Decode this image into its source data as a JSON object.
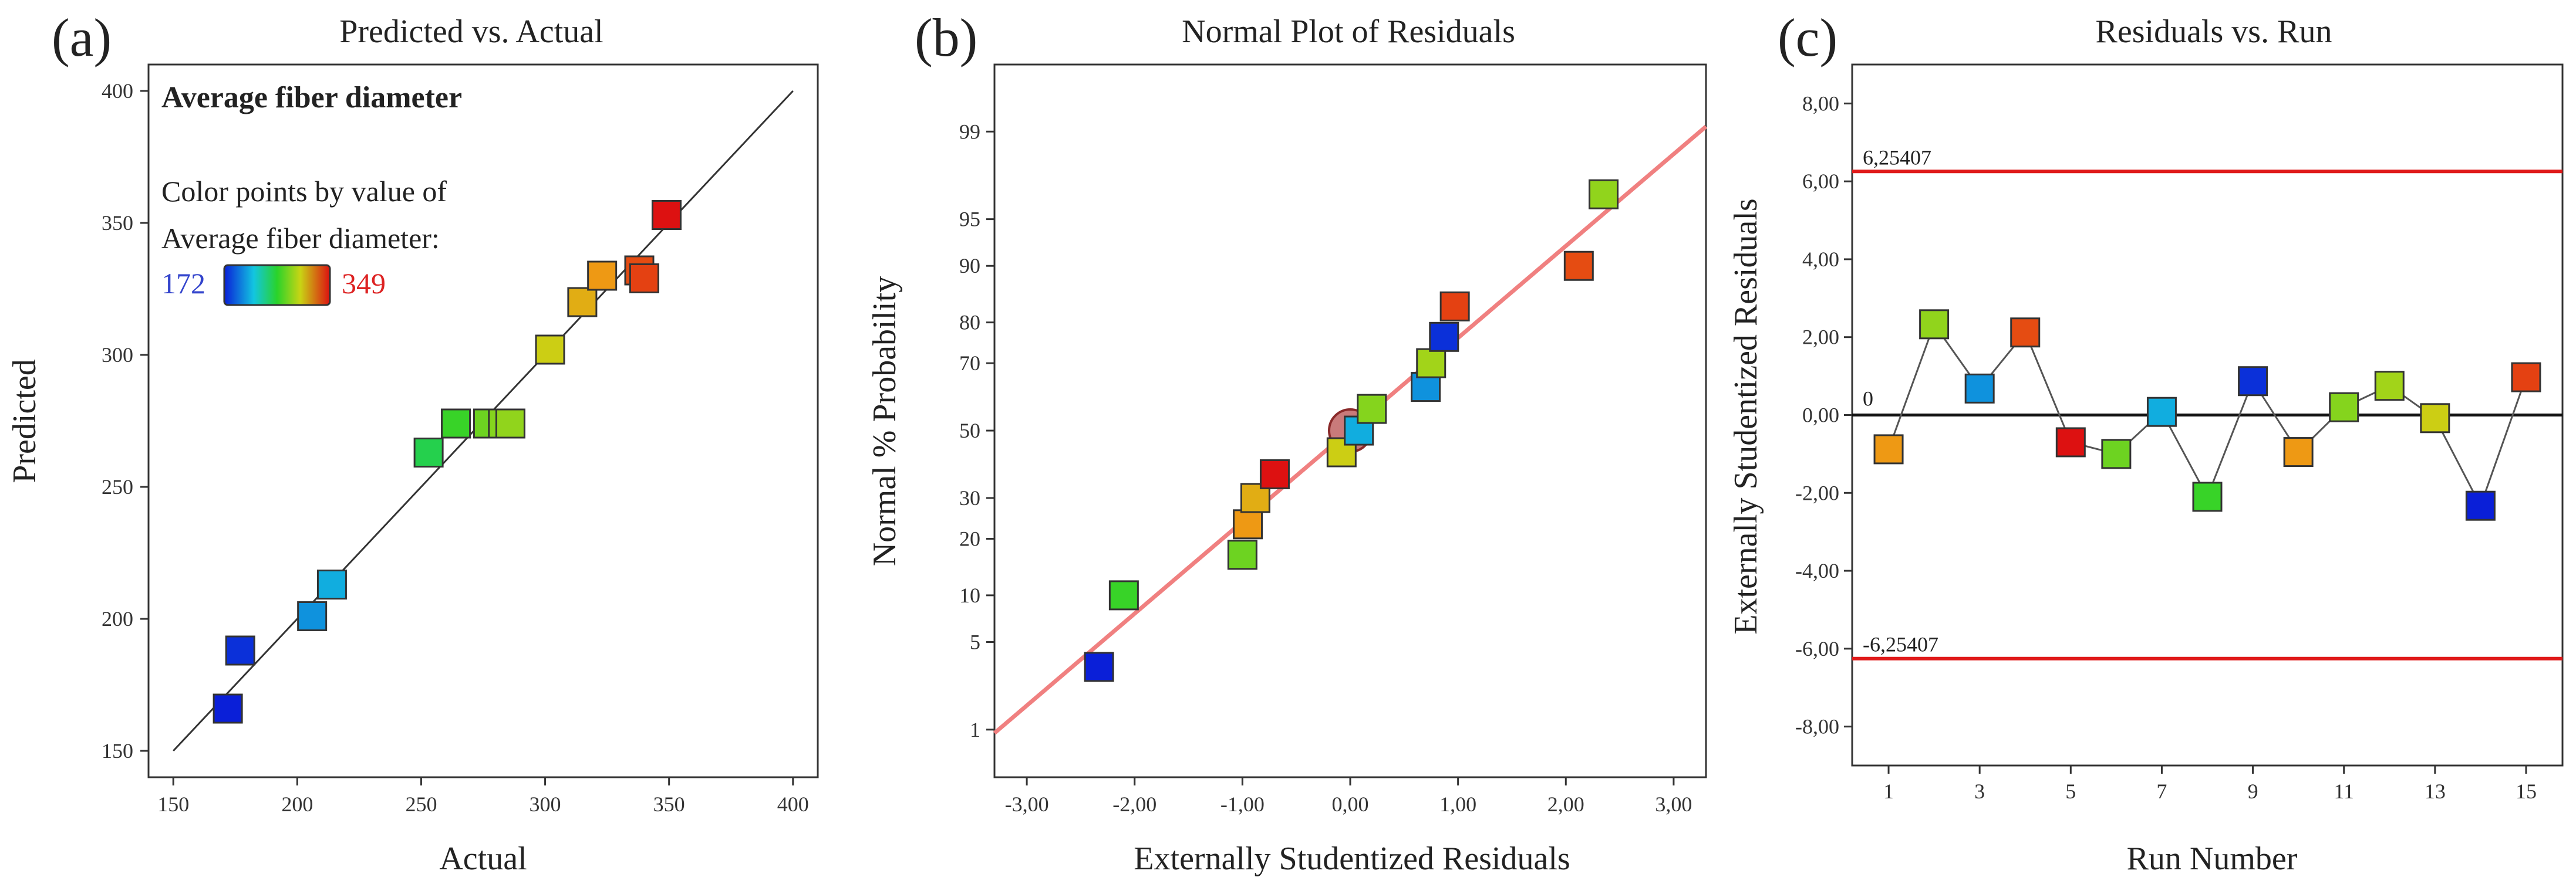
{
  "figure": {
    "marker_size": 8
  },
  "colors": {
    "low": "#0a1fd8",
    "high": "#dd1111",
    "fit_line_a": "#333333",
    "fit_line_b": "#f08080",
    "limit_line": "#e01a1a",
    "zero_line": "#111111",
    "run_line": "#555555",
    "marker_edge": "#333333"
  },
  "chart_data": [
    {
      "id": "a",
      "panel_label": "(a)",
      "type": "scatter",
      "title": "Predicted vs. Actual",
      "xlabel": "Actual",
      "ylabel": "Predicted",
      "xlim": [
        140,
        410
      ],
      "ylim": [
        140,
        410
      ],
      "xticks": [
        150,
        200,
        250,
        300,
        350,
        400
      ],
      "yticks": [
        150,
        200,
        250,
        300,
        350,
        400
      ],
      "xtick_labels": [
        "150",
        "200",
        "250",
        "300",
        "350",
        "400"
      ],
      "ytick_labels": [
        "150",
        "200",
        "250",
        "300",
        "350",
        "400"
      ],
      "reference_line": [
        [
          150,
          150
        ],
        [
          400,
          400
        ]
      ],
      "annotation": {
        "heading": "Average fiber diameter",
        "legend_line1": "Color points by value of",
        "legend_line2": "Average fiber diameter:",
        "scale_min": "172",
        "scale_max": "349",
        "scale_min_value": 172,
        "scale_max_value": 349
      },
      "points": [
        {
          "actual": 172,
          "predicted": 166
        },
        {
          "actual": 177,
          "predicted": 188
        },
        {
          "actual": 206,
          "predicted": 201
        },
        {
          "actual": 214,
          "predicted": 213
        },
        {
          "actual": 253,
          "predicted": 263
        },
        {
          "actual": 264,
          "predicted": 274
        },
        {
          "actual": 277,
          "predicted": 274
        },
        {
          "actual": 283,
          "predicted": 274
        },
        {
          "actual": 286,
          "predicted": 274
        },
        {
          "actual": 302,
          "predicted": 302
        },
        {
          "actual": 315,
          "predicted": 320
        },
        {
          "actual": 323,
          "predicted": 330
        },
        {
          "actual": 338,
          "predicted": 332
        },
        {
          "actual": 340,
          "predicted": 329
        },
        {
          "actual": 349,
          "predicted": 353
        }
      ]
    },
    {
      "id": "b",
      "panel_label": "(b)",
      "type": "scatter",
      "title": "Normal Plot of Residuals",
      "xlabel": "Externally Studentized Residuals",
      "ylabel": "Normal % Probability",
      "xlim": [
        -3.3,
        3.3
      ],
      "yscale": "normal-probability",
      "xticks": [
        -3,
        -2,
        -1,
        0,
        1,
        2,
        3
      ],
      "xtick_labels": [
        "-3,00",
        "-2,00",
        "-1,00",
        "0,00",
        "1,00",
        "2,00",
        "3,00"
      ],
      "yticks": [
        1,
        5,
        10,
        20,
        30,
        50,
        70,
        80,
        90,
        95,
        99
      ],
      "ytick_labels": [
        "1",
        "5",
        "10",
        "20",
        "30",
        "50",
        "70",
        "80",
        "90",
        "95",
        "99"
      ],
      "fit_line": [
        [
          -3.3,
          0.93
        ],
        [
          3.3,
          99.1
        ]
      ],
      "points": [
        {
          "residual": -2.33,
          "prob": 3.3,
          "value": 172
        },
        {
          "residual": -2.1,
          "prob": 10,
          "value": 264
        },
        {
          "residual": -1.0,
          "prob": 16.7,
          "value": 277
        },
        {
          "residual": -0.95,
          "prob": 23.3,
          "value": 323
        },
        {
          "residual": -0.88,
          "prob": 30,
          "value": 315
        },
        {
          "residual": -0.7,
          "prob": 36.7,
          "value": 349
        },
        {
          "residual": -0.08,
          "prob": 43.3,
          "value": 302
        },
        {
          "residual": 0.0,
          "prob": 50,
          "value": 330,
          "highlight": true
        },
        {
          "residual": 0.08,
          "prob": 50,
          "value": 214
        },
        {
          "residual": 0.2,
          "prob": 56.7,
          "value": 283
        },
        {
          "residual": 0.7,
          "prob": 63.3,
          "value": 206
        },
        {
          "residual": 0.75,
          "prob": 70,
          "value": 290
        },
        {
          "residual": 0.87,
          "prob": 76.7,
          "value": 177
        },
        {
          "residual": 0.97,
          "prob": 83.3,
          "value": 340
        },
        {
          "residual": 2.12,
          "prob": 90,
          "value": 338
        },
        {
          "residual": 2.35,
          "prob": 96.7,
          "value": 286
        }
      ]
    },
    {
      "id": "c",
      "panel_label": "(c)",
      "type": "line",
      "title": "Residuals vs. Run",
      "xlabel": "Run Number",
      "ylabel": "Externally Studentized Residuals",
      "xlim": [
        0.2,
        15.8
      ],
      "ylim": [
        -9,
        9
      ],
      "xticks": [
        1,
        3,
        5,
        7,
        9,
        11,
        13,
        15
      ],
      "xtick_labels": [
        "1",
        "3",
        "5",
        "7",
        "9",
        "11",
        "13",
        "15"
      ],
      "yticks": [
        -8,
        -6,
        -4,
        -2,
        0,
        2,
        4,
        6,
        8
      ],
      "ytick_labels": [
        "-8,00",
        "-6,00",
        "-4,00",
        "-2,00",
        "0,00",
        "2,00",
        "4,00",
        "6,00",
        "8,00"
      ],
      "upper_limit": 6.25407,
      "lower_limit": -6.25407,
      "upper_limit_label": "6,25407",
      "lower_limit_label": "-6,25407",
      "zero_label": "0",
      "points": [
        {
          "run": 1,
          "residual": -0.88,
          "value": 323
        },
        {
          "run": 2,
          "residual": 2.33,
          "value": 286
        },
        {
          "run": 3,
          "residual": 0.68,
          "value": 206
        },
        {
          "run": 4,
          "residual": 2.12,
          "value": 338
        },
        {
          "run": 5,
          "residual": -0.7,
          "value": 349
        },
        {
          "run": 6,
          "residual": -1.0,
          "value": 277
        },
        {
          "run": 7,
          "residual": 0.08,
          "value": 214
        },
        {
          "run": 8,
          "residual": -2.1,
          "value": 264
        },
        {
          "run": 9,
          "residual": 0.87,
          "value": 177
        },
        {
          "run": 10,
          "residual": -0.95,
          "value": 323
        },
        {
          "run": 11,
          "residual": 0.2,
          "value": 283
        },
        {
          "run": 12,
          "residual": 0.75,
          "value": 290
        },
        {
          "run": 13,
          "residual": -0.08,
          "value": 302
        },
        {
          "run": 14,
          "residual": -2.33,
          "value": 172
        },
        {
          "run": 15,
          "residual": 0.97,
          "value": 340
        }
      ]
    }
  ]
}
